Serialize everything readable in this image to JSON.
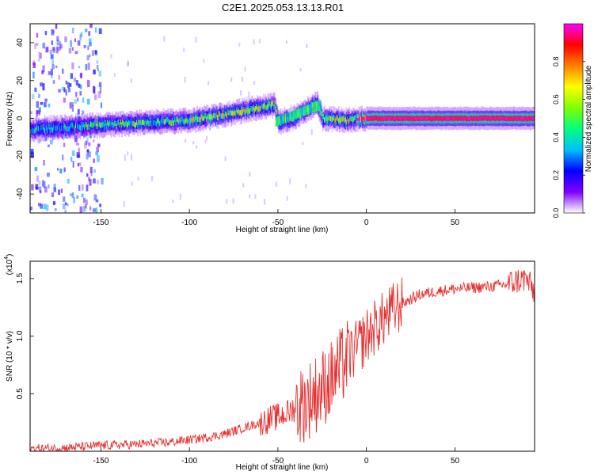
{
  "figure": {
    "title": "C2E1.2025.053.13.13.R01"
  },
  "chart_data": [
    {
      "type": "heatmap",
      "xlabel": "Height of straight line (km)",
      "ylabel": "Frequency (Hz)",
      "xlim": [
        -190,
        95
      ],
      "ylim": [
        -50,
        50
      ],
      "xticks": [
        -150,
        -100,
        -50,
        0,
        50
      ],
      "yticks": [
        -40,
        -20,
        0,
        20,
        40
      ],
      "grid": false,
      "colorbar": {
        "label": "Normalized spectral amplitude",
        "range": [
          0,
          1
        ],
        "ticks": [
          0.0,
          0.2,
          0.4,
          0.6,
          0.8
        ],
        "colormap": [
          "#ffffff",
          "#8000ff",
          "#0000ff",
          "#00c0ff",
          "#00ff80",
          "#80ff00",
          "#ffff00",
          "#ff8000",
          "#ff0000",
          "#ff00ff"
        ]
      },
      "ridge": [
        {
          "x": -190,
          "f": -6
        },
        {
          "x": -160,
          "f": -4
        },
        {
          "x": -120,
          "f": -2
        },
        {
          "x": -100,
          "f": -1
        },
        {
          "x": -80,
          "f": 2
        },
        {
          "x": -60,
          "f": 6
        },
        {
          "x": -52,
          "f": 7
        },
        {
          "x": -50,
          "f": -2
        },
        {
          "x": -40,
          "f": 1
        },
        {
          "x": -28,
          "f": 8
        },
        {
          "x": -25,
          "f": 0
        },
        {
          "x": -10,
          "f": -1
        },
        {
          "x": 0,
          "f": 0
        },
        {
          "x": 95,
          "f": 0
        }
      ]
    },
    {
      "type": "line",
      "xlabel": "Height of straight line (km)",
      "ylabel": "SNR (10 * v/v)",
      "y_multiplier": "(x10^4)",
      "xlim": [
        -190,
        95
      ],
      "ylim": [
        0,
        1.65
      ],
      "xticks": [
        -150,
        -100,
        -50,
        0,
        50
      ],
      "yticks": [
        0.5,
        1.0,
        1.5
      ],
      "grid": false,
      "series": [
        {
          "color": "#e83030",
          "x": [
            -190,
            -170,
            -150,
            -130,
            -110,
            -100,
            -90,
            -80,
            -70,
            -60,
            -50,
            -45,
            -40,
            -35,
            -30,
            -25,
            -20,
            -15,
            -12,
            -10,
            -5,
            0,
            5,
            10,
            15,
            20,
            25,
            30,
            40,
            50,
            60,
            70,
            80,
            85,
            90,
            95
          ],
          "y": [
            0.02,
            0.03,
            0.05,
            0.06,
            0.08,
            0.1,
            0.12,
            0.15,
            0.2,
            0.25,
            0.3,
            0.33,
            0.38,
            0.42,
            0.48,
            0.55,
            0.62,
            0.72,
            0.78,
            0.82,
            0.9,
            1.0,
            1.08,
            1.15,
            1.22,
            1.28,
            1.32,
            1.36,
            1.39,
            1.41,
            1.42,
            1.43,
            1.45,
            1.48,
            1.5,
            1.38
          ]
        }
      ]
    }
  ]
}
